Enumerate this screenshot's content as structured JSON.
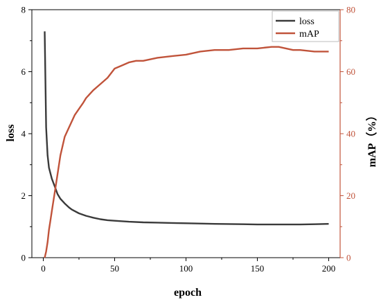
{
  "chart_data": {
    "type": "line",
    "title": "",
    "xlabel": "epoch",
    "ylabel_left": "loss",
    "ylabel_right": "mAP（%）",
    "xlim": [
      -8,
      208
    ],
    "xticks": [
      0,
      50,
      100,
      150,
      200
    ],
    "ylim_left": [
      0,
      8
    ],
    "yticks_left": [
      0,
      2,
      4,
      6,
      8
    ],
    "ylim_right": [
      0,
      80
    ],
    "yticks_right": [
      0,
      20,
      40,
      60,
      80
    ],
    "legend_position": "top-right",
    "grid": false,
    "series": [
      {
        "name": "loss",
        "axis": "left",
        "color": "#3a3a3a",
        "x": [
          1,
          2,
          3,
          4,
          6,
          8,
          10,
          12,
          15,
          18,
          20,
          25,
          30,
          35,
          40,
          45,
          50,
          60,
          70,
          80,
          90,
          100,
          120,
          140,
          150,
          160,
          170,
          180,
          190,
          200
        ],
        "y": [
          7.3,
          4.2,
          3.3,
          2.9,
          2.55,
          2.3,
          2.05,
          1.9,
          1.75,
          1.62,
          1.55,
          1.43,
          1.35,
          1.29,
          1.24,
          1.21,
          1.19,
          1.16,
          1.14,
          1.13,
          1.12,
          1.11,
          1.09,
          1.08,
          1.07,
          1.07,
          1.07,
          1.07,
          1.08,
          1.09
        ]
      },
      {
        "name": "mAP",
        "axis": "right",
        "color": "#c0533a",
        "x": [
          1,
          2,
          3,
          4,
          5,
          6,
          8,
          10,
          12,
          15,
          18,
          20,
          22,
          25,
          28,
          30,
          35,
          40,
          45,
          50,
          55,
          60,
          65,
          70,
          80,
          90,
          100,
          110,
          120,
          130,
          140,
          150,
          160,
          165,
          170,
          175,
          180,
          190,
          200
        ],
        "y": [
          0,
          2,
          5,
          9,
          12,
          15,
          21,
          27,
          33,
          39,
          42,
          44,
          46,
          48,
          50,
          51.5,
          54,
          56,
          58,
          61,
          62,
          63,
          63.5,
          63.5,
          64.5,
          65,
          65.5,
          66.5,
          67,
          67,
          67.5,
          67.5,
          68,
          68,
          67.5,
          67,
          67,
          66.5,
          66.5
        ]
      }
    ]
  }
}
